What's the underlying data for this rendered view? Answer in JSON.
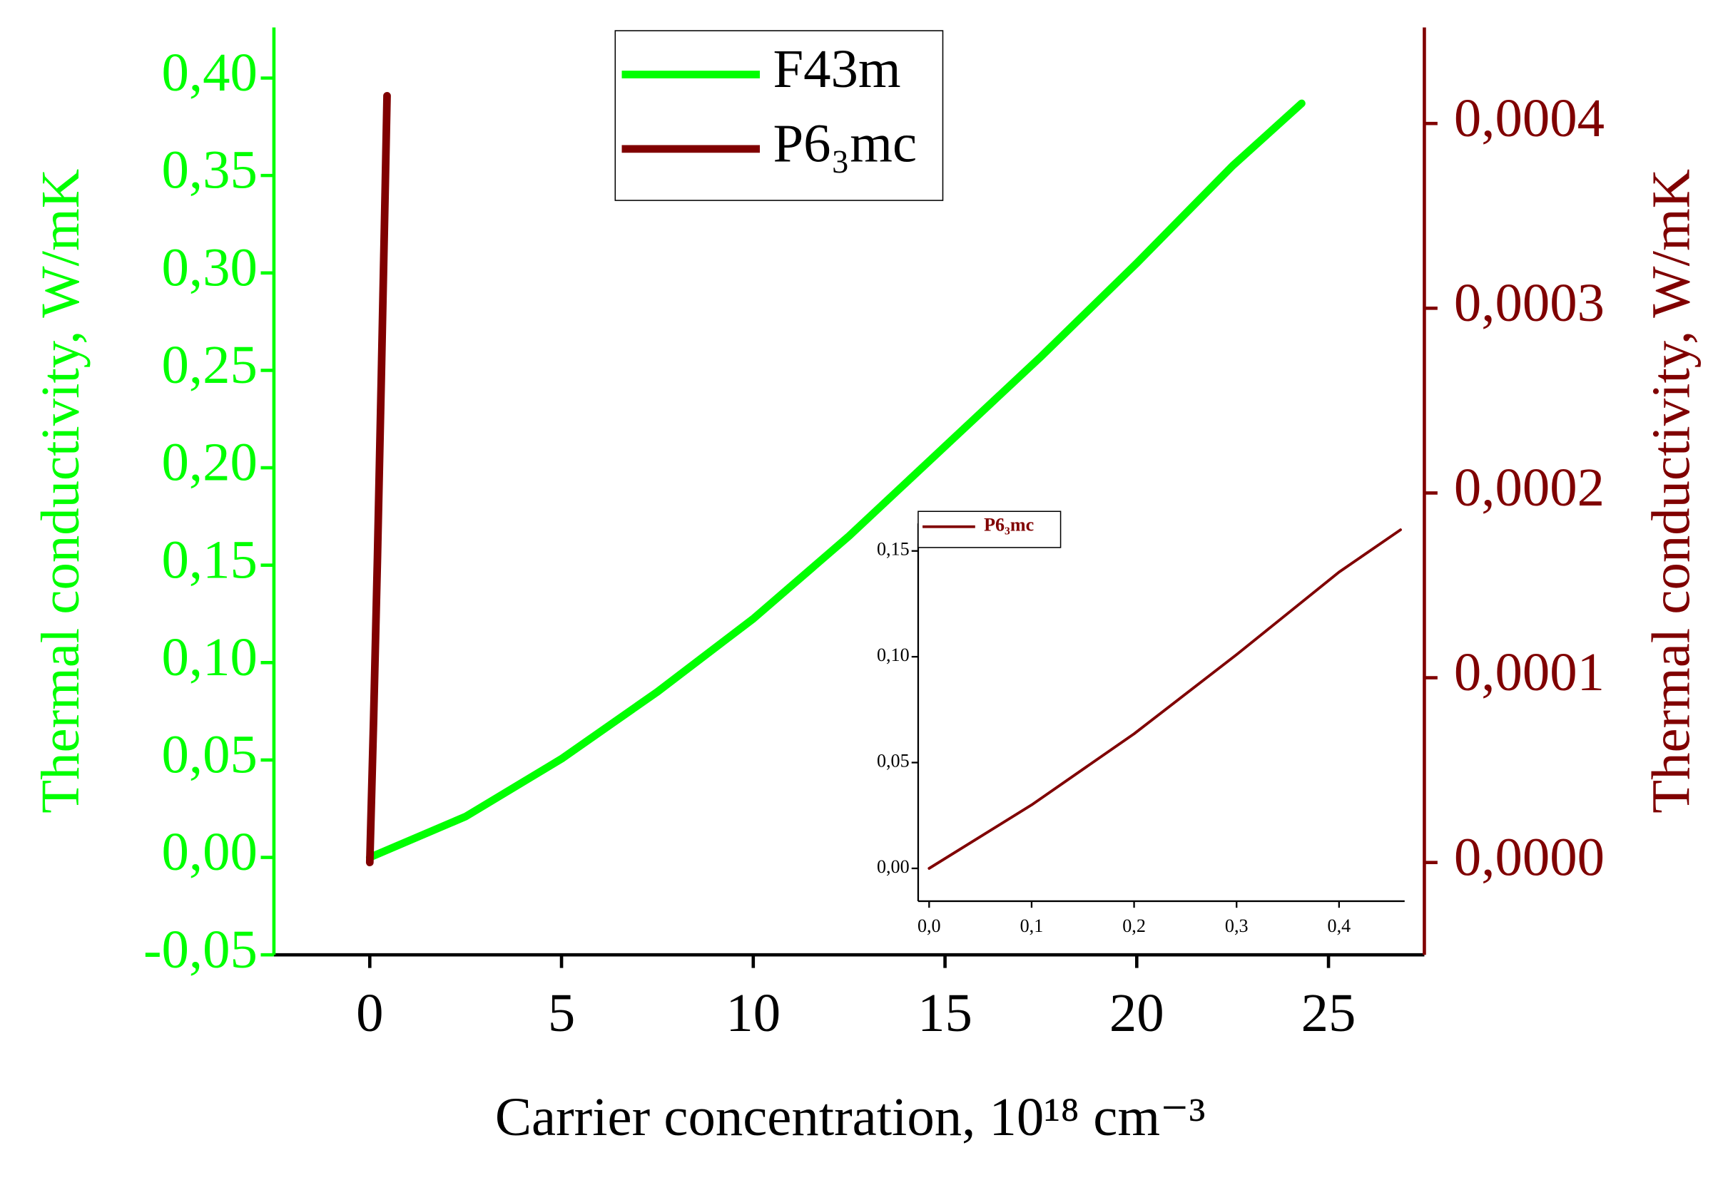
{
  "chart_data": [
    {
      "type": "line",
      "xlabel": "Carrier concentration, 10¹⁸ cm⁻³",
      "ylabel": "Thermal conductivity, W/mK",
      "y2label": "Thermal conductivity, W/mK",
      "xlim": [
        -2.5,
        27.5
      ],
      "xticks": [
        0,
        5,
        10,
        15,
        20,
        25
      ],
      "ylim": [
        -0.05,
        0.426
      ],
      "yticks": [
        {
          "value": -0.05,
          "label": "-0,05"
        },
        {
          "value": 0,
          "label": "0,00"
        },
        {
          "value": 0.05,
          "label": "0,05"
        },
        {
          "value": 0.1,
          "label": "0,10"
        },
        {
          "value": 0.15,
          "label": "0,15"
        },
        {
          "value": 0.2,
          "label": "0,20"
        },
        {
          "value": 0.25,
          "label": "0,25"
        },
        {
          "value": 0.3,
          "label": "0,30"
        },
        {
          "value": 0.35,
          "label": "0,35"
        },
        {
          "value": 0.4,
          "label": "0,40"
        }
      ],
      "y2lim": [
        -5e-05,
        0.000452
      ],
      "y2ticks": [
        {
          "value": 0,
          "label": "0,0000"
        },
        {
          "value": 0.0001,
          "label": "0,0001"
        },
        {
          "value": 0.0002,
          "label": "0,0002"
        },
        {
          "value": 0.0003,
          "label": "0,0003"
        },
        {
          "value": 0.0004,
          "label": "0,0004"
        }
      ],
      "legend": "upper center",
      "series": [
        {
          "name": "F43m",
          "color": "#00ff00",
          "x": [
            0,
            2.5,
            5,
            7.5,
            10,
            12.5,
            15,
            17.5,
            20,
            22.5,
            24.3
          ],
          "values": [
            0,
            0.021,
            0.0506,
            0.085,
            0.1225,
            0.165,
            0.211,
            0.257,
            0.305,
            0.355,
            0.387
          ]
        },
        {
          "name": "P6₃mc",
          "color": "#800000",
          "axis": "y2",
          "x": [
            0,
            0.1,
            0.2,
            0.3,
            0.4,
            0.45
          ],
          "values": [
            0,
            7.8e-05,
            0.000165,
            0.000262,
            0.000363,
            0.000415
          ]
        }
      ]
    },
    {
      "type": "line",
      "xlim": [
        -0.0107,
        0.464
      ],
      "xticks": [
        {
          "value": 0,
          "label": "0,0"
        },
        {
          "value": 0.1,
          "label": "0,1"
        },
        {
          "value": 0.2,
          "label": "0,2"
        },
        {
          "value": 0.3,
          "label": "0,3"
        },
        {
          "value": 0.4,
          "label": "0,4"
        }
      ],
      "ylim": [
        -0.0155,
        0.163
      ],
      "yticks": [
        {
          "value": 0,
          "label": "0,00"
        },
        {
          "value": 0.05,
          "label": "0,05"
        },
        {
          "value": 0.1,
          "label": "0,10"
        },
        {
          "value": 0.15,
          "label": "0,15"
        }
      ],
      "legend": "upper left",
      "series": [
        {
          "name": "P6₃mc",
          "color": "#800000",
          "x": [
            0,
            0.1,
            0.2,
            0.3,
            0.4,
            0.46
          ],
          "values": [
            0,
            0.03,
            0.0636,
            0.101,
            0.14,
            0.16
          ]
        }
      ]
    }
  ]
}
